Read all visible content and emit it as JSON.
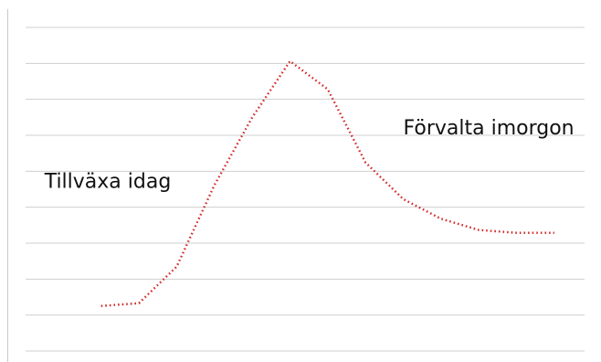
{
  "chart_data": {
    "type": "line",
    "title": "",
    "xlabel": "",
    "ylabel": "",
    "grid": true,
    "legend": "none",
    "x": [
      0,
      1,
      2,
      3,
      4,
      5,
      6,
      7,
      8,
      9,
      10,
      11,
      12
    ],
    "series": [
      {
        "values": [
          6,
          7,
          20,
          49,
          73,
          93,
          83,
          57,
          44,
          37,
          33,
          32,
          32
        ],
        "color": "#d12a2a",
        "style": "dotted"
      }
    ],
    "xlim": [
      -2,
      12.8
    ],
    "ylim": [
      -10,
      105
    ],
    "annotations": [
      {
        "text": "Tillväxa idag",
        "x": -1.5,
        "y": 48
      },
      {
        "text": "Förvalta imorgon",
        "x": 8.0,
        "y": 67
      }
    ]
  }
}
